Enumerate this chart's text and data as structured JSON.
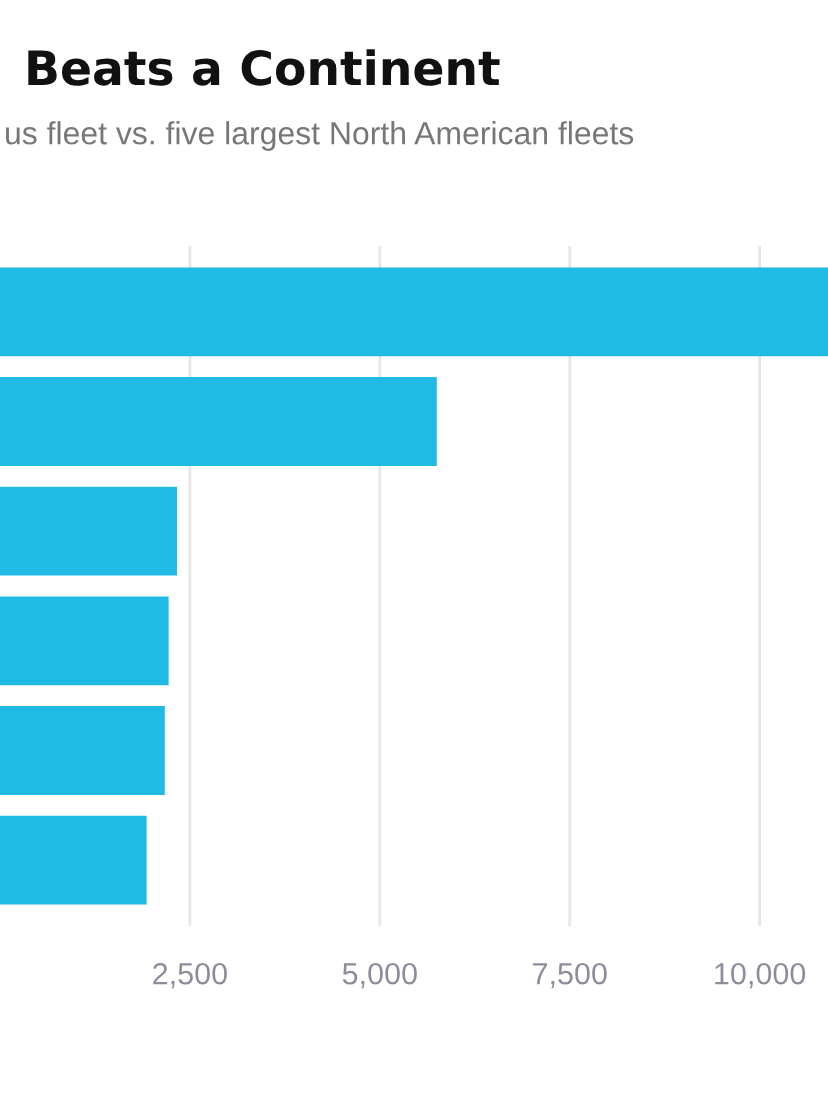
{
  "chart_data": {
    "type": "bar",
    "orientation": "horizontal",
    "title": "Beats a Continent",
    "subtitle": "us fleet vs. five largest North American fleets",
    "categories": [
      null,
      null,
      null,
      null,
      null,
      null
    ],
    "values": [
      10900,
      5750,
      2330,
      2220,
      2170,
      1930
    ],
    "color": "#21bae5",
    "xlim": [
      0,
      10900
    ],
    "xticks": [
      {
        "value": 2500,
        "label": "2,500"
      },
      {
        "value": 5000,
        "label": "5,000"
      },
      {
        "value": 7500,
        "label": "7,500"
      },
      {
        "value": 10000,
        "label": "10,000"
      }
    ],
    "grid": "x",
    "tick_labels": "x"
  }
}
